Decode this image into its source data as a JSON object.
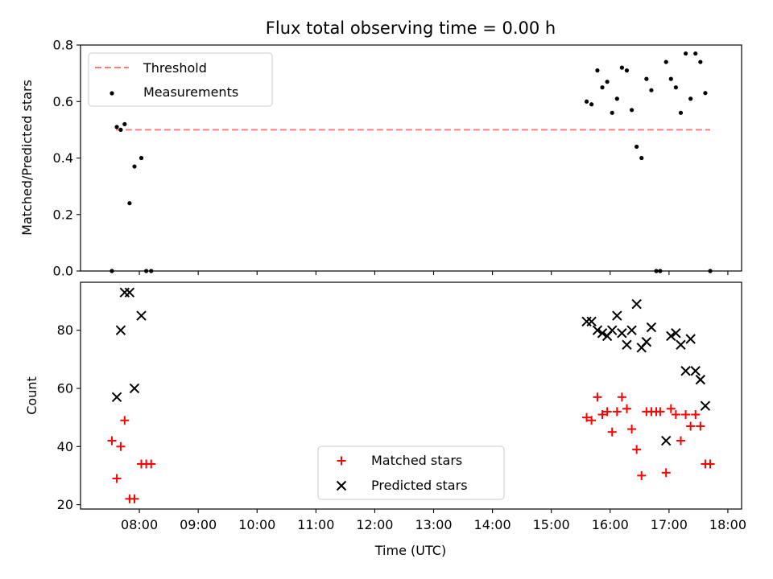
{
  "title": "Flux total observing time = 0.00 h",
  "chart_data": [
    {
      "type": "scatter",
      "ylabel": "Matched/Predicted stars",
      "ylim": [
        0,
        0.8
      ],
      "yticks": [
        "0.0",
        "0.2",
        "0.4",
        "0.6",
        "0.8"
      ],
      "xlim": [
        "07:00",
        "18:14"
      ],
      "legend_position": "upper-left",
      "threshold": {
        "name": "Threshold",
        "value": 0.5,
        "x_start": "07:36",
        "x_end": "17:42",
        "color": "#ff7f7f",
        "style": "dashed"
      },
      "series": [
        {
          "name": "Measurements",
          "color": "#000000",
          "marker": "dot",
          "points": [
            [
              "07:32",
              0.0
            ],
            [
              "07:37",
              0.51
            ],
            [
              "07:41",
              0.5
            ],
            [
              "07:45",
              0.52
            ],
            [
              "07:50",
              0.24
            ],
            [
              "07:55",
              0.37
            ],
            [
              "08:02",
              0.4
            ],
            [
              "08:07",
              0.0
            ],
            [
              "08:12",
              0.0
            ],
            [
              "15:36",
              0.6
            ],
            [
              "15:41",
              0.59
            ],
            [
              "15:47",
              0.71
            ],
            [
              "15:52",
              0.65
            ],
            [
              "15:57",
              0.67
            ],
            [
              "16:02",
              0.56
            ],
            [
              "16:07",
              0.61
            ],
            [
              "16:12",
              0.72
            ],
            [
              "16:17",
              0.71
            ],
            [
              "16:22",
              0.57
            ],
            [
              "16:27",
              0.44
            ],
            [
              "16:32",
              0.4
            ],
            [
              "16:37",
              0.68
            ],
            [
              "16:42",
              0.64
            ],
            [
              "16:47",
              0.0
            ],
            [
              "16:51",
              0.0
            ],
            [
              "16:57",
              0.74
            ],
            [
              "17:02",
              0.68
            ],
            [
              "17:07",
              0.65
            ],
            [
              "17:12",
              0.56
            ],
            [
              "17:17",
              0.77
            ],
            [
              "17:22",
              0.61
            ],
            [
              "17:27",
              0.77
            ],
            [
              "17:32",
              0.74
            ],
            [
              "17:37",
              0.63
            ],
            [
              "17:42",
              0.0
            ]
          ]
        }
      ]
    },
    {
      "type": "scatter",
      "xlabel": "Time (UTC)",
      "ylabel": "Count",
      "ylim": [
        18.5,
        96.5
      ],
      "yticks": [
        "20",
        "40",
        "60",
        "80"
      ],
      "xlim": [
        "07:00",
        "18:14"
      ],
      "xticks": [
        "08:00",
        "09:00",
        "10:00",
        "11:00",
        "12:00",
        "13:00",
        "14:00",
        "15:00",
        "16:00",
        "17:00",
        "18:00"
      ],
      "legend_position": "lower-center",
      "series": [
        {
          "name": "Matched stars",
          "color": "#ff0000",
          "marker": "plus",
          "points": [
            [
              "07:32",
              42
            ],
            [
              "07:37",
              29
            ],
            [
              "07:41",
              40
            ],
            [
              "07:45",
              49
            ],
            [
              "07:50",
              22
            ],
            [
              "07:55",
              22
            ],
            [
              "08:02",
              34
            ],
            [
              "08:07",
              34
            ],
            [
              "08:12",
              34
            ],
            [
              "15:36",
              50
            ],
            [
              "15:41",
              49
            ],
            [
              "15:47",
              57
            ],
            [
              "15:52",
              51
            ],
            [
              "15:57",
              52
            ],
            [
              "16:02",
              45
            ],
            [
              "16:07",
              52
            ],
            [
              "16:12",
              57
            ],
            [
              "16:17",
              53
            ],
            [
              "16:22",
              46
            ],
            [
              "16:27",
              39
            ],
            [
              "16:32",
              30
            ],
            [
              "16:37",
              52
            ],
            [
              "16:42",
              52
            ],
            [
              "16:47",
              52
            ],
            [
              "16:51",
              52
            ],
            [
              "16:57",
              31
            ],
            [
              "17:02",
              53
            ],
            [
              "17:07",
              51
            ],
            [
              "17:12",
              42
            ],
            [
              "17:17",
              51
            ],
            [
              "17:22",
              47
            ],
            [
              "17:27",
              51
            ],
            [
              "17:32",
              47
            ],
            [
              "17:37",
              34
            ],
            [
              "17:42",
              34
            ]
          ]
        },
        {
          "name": "Predicted stars",
          "color": "#000000",
          "marker": "x",
          "points": [
            [
              "07:37",
              57
            ],
            [
              "07:41",
              80
            ],
            [
              "07:45",
              93
            ],
            [
              "07:50",
              93
            ],
            [
              "07:55",
              60
            ],
            [
              "08:02",
              85
            ],
            [
              "15:36",
              83
            ],
            [
              "15:41",
              83
            ],
            [
              "15:47",
              80
            ],
            [
              "15:52",
              79
            ],
            [
              "15:57",
              78
            ],
            [
              "16:02",
              80
            ],
            [
              "16:07",
              85
            ],
            [
              "16:12",
              79
            ],
            [
              "16:17",
              75
            ],
            [
              "16:22",
              80
            ],
            [
              "16:27",
              89
            ],
            [
              "16:32",
              74
            ],
            [
              "16:37",
              76
            ],
            [
              "16:42",
              81
            ],
            [
              "16:57",
              42
            ],
            [
              "17:02",
              78
            ],
            [
              "17:07",
              79
            ],
            [
              "17:12",
              75
            ],
            [
              "17:17",
              66
            ],
            [
              "17:22",
              77
            ],
            [
              "17:27",
              66
            ],
            [
              "17:32",
              63
            ],
            [
              "17:37",
              54
            ]
          ]
        }
      ]
    }
  ]
}
